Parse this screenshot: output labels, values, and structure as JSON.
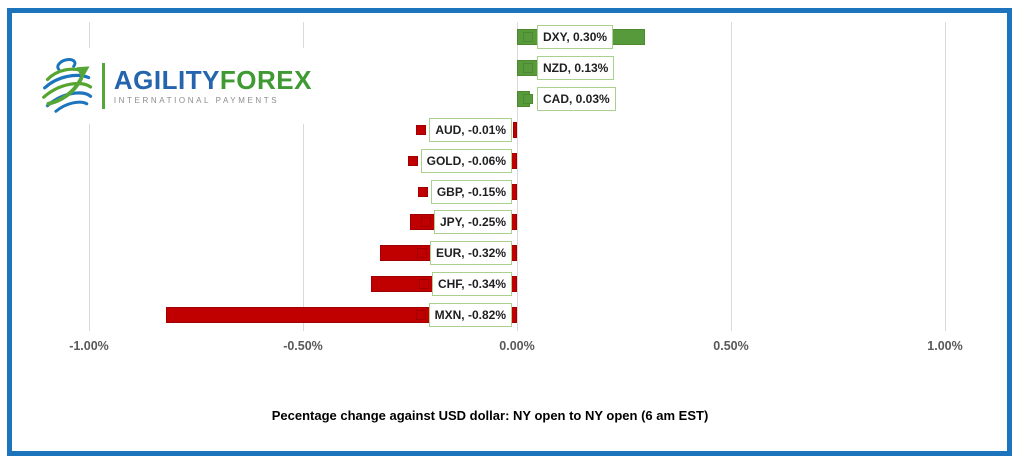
{
  "frame": {
    "border_color": "#1C75BC"
  },
  "logo": {
    "brand_primary": "AGILITY",
    "brand_secondary": "FOREX",
    "tagline": "INTERNATIONAL PAYMENTS",
    "colors": {
      "primary": "#2565AE",
      "secondary": "#3F9A34",
      "divider": "#54A73C"
    }
  },
  "chart_data": {
    "type": "bar",
    "orientation": "horizontal",
    "title": "Pecentage change against USD dollar: NY open to  NY open  (6 am EST)",
    "categories": [
      "DXY",
      "NZD",
      "CAD",
      "AUD",
      "GOLD",
      "GBP",
      "JPY",
      "EUR",
      "CHF",
      "MXN"
    ],
    "values": [
      0.3,
      0.13,
      0.03,
      -0.01,
      -0.06,
      -0.15,
      -0.25,
      -0.32,
      -0.34,
      -0.82
    ],
    "data_labels": [
      "DXY, 0.30%",
      "NZD, 0.13%",
      "CAD, 0.03%",
      "AUD, -0.01%",
      "GOLD, -0.06%",
      "GBP, -0.15%",
      "JPY, -0.25%",
      "EUR, -0.32%",
      "CHF, -0.34%",
      "MXN, -0.82%"
    ],
    "x_ticks": [
      {
        "label": "-1.00%",
        "value": -1.0
      },
      {
        "label": "-0.50%",
        "value": -0.5
      },
      {
        "label": "0.00%",
        "value": 0.0
      },
      {
        "label": "0.50%",
        "value": 0.5
      },
      {
        "label": "1.00%",
        "value": 1.0
      }
    ],
    "xlim": [
      -1.0,
      1.0
    ],
    "grid": true,
    "legend_position": "none",
    "colors": {
      "positive_fill": "#569A3B",
      "positive_border": "#4E892F",
      "negative_fill": "#C00000",
      "negative_border": "#A00000",
      "label_box_border": "#A9D08E",
      "gridline": "#D9D9D9",
      "tick_text": "#595959"
    }
  }
}
